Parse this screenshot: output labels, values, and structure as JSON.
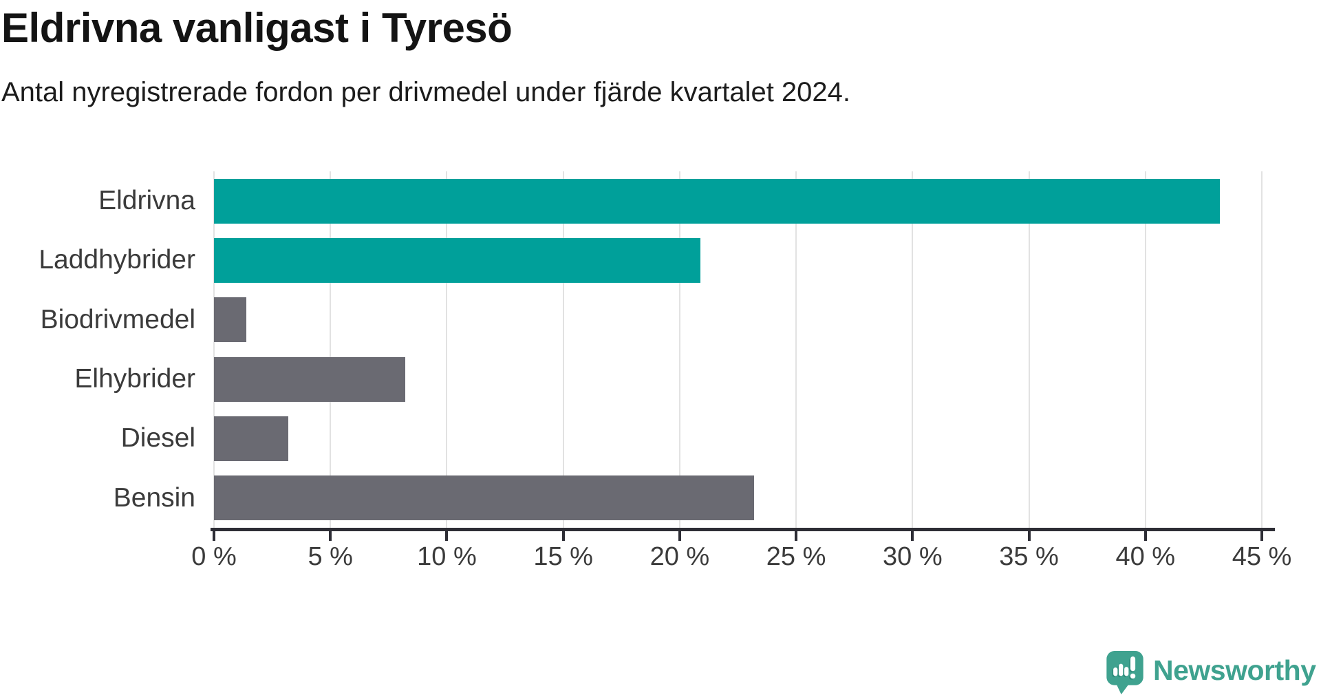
{
  "title": "Eldrivna vanligast i Tyresö",
  "subtitle": "Antal nyregistrerade fordon per drivmedel under fjärde kvartalet 2024.",
  "chart_data": {
    "type": "bar",
    "orientation": "horizontal",
    "title": "Eldrivna vanligast i Tyresö",
    "subtitle": "Antal nyregistrerade fordon per drivmedel under fjärde kvartalet 2024.",
    "categories": [
      "Eldrivna",
      "Laddhybrider",
      "Biodrivmedel",
      "Elhybrider",
      "Diesel",
      "Bensin"
    ],
    "values": [
      43.2,
      20.9,
      1.4,
      8.2,
      3.2,
      23.2
    ],
    "unit": "%",
    "bar_colors": [
      "#00A09A",
      "#00A09A",
      "#6A6A72",
      "#6A6A72",
      "#6A6A72",
      "#6A6A72"
    ],
    "highlight_color": "#00A09A",
    "default_color": "#6A6A72",
    "xlim": [
      0,
      45
    ],
    "x_ticks": [
      {
        "value": 0,
        "label": "0 %"
      },
      {
        "value": 5,
        "label": "5 %"
      },
      {
        "value": 10,
        "label": "10 %"
      },
      {
        "value": 15,
        "label": "15 %"
      },
      {
        "value": 20,
        "label": "20 %"
      },
      {
        "value": 25,
        "label": "25 %"
      },
      {
        "value": 30,
        "label": "30 %"
      },
      {
        "value": 35,
        "label": "35 %"
      },
      {
        "value": 40,
        "label": "40 %"
      },
      {
        "value": 45,
        "label": "45 %"
      }
    ],
    "grid": "vertical",
    "legend": "none"
  },
  "colors": {
    "bar_highlight": "#00A09A",
    "bar_default": "#6A6A72",
    "gridline": "#E2E2E2",
    "axis": "#2D2D35",
    "title_text": "#141414",
    "label_text": "#3B3B3B",
    "logo_teal": "#3FA28F",
    "logo_teal_dark": "#2F8E7C"
  },
  "branding": {
    "logo_text": "Newsworthy"
  }
}
